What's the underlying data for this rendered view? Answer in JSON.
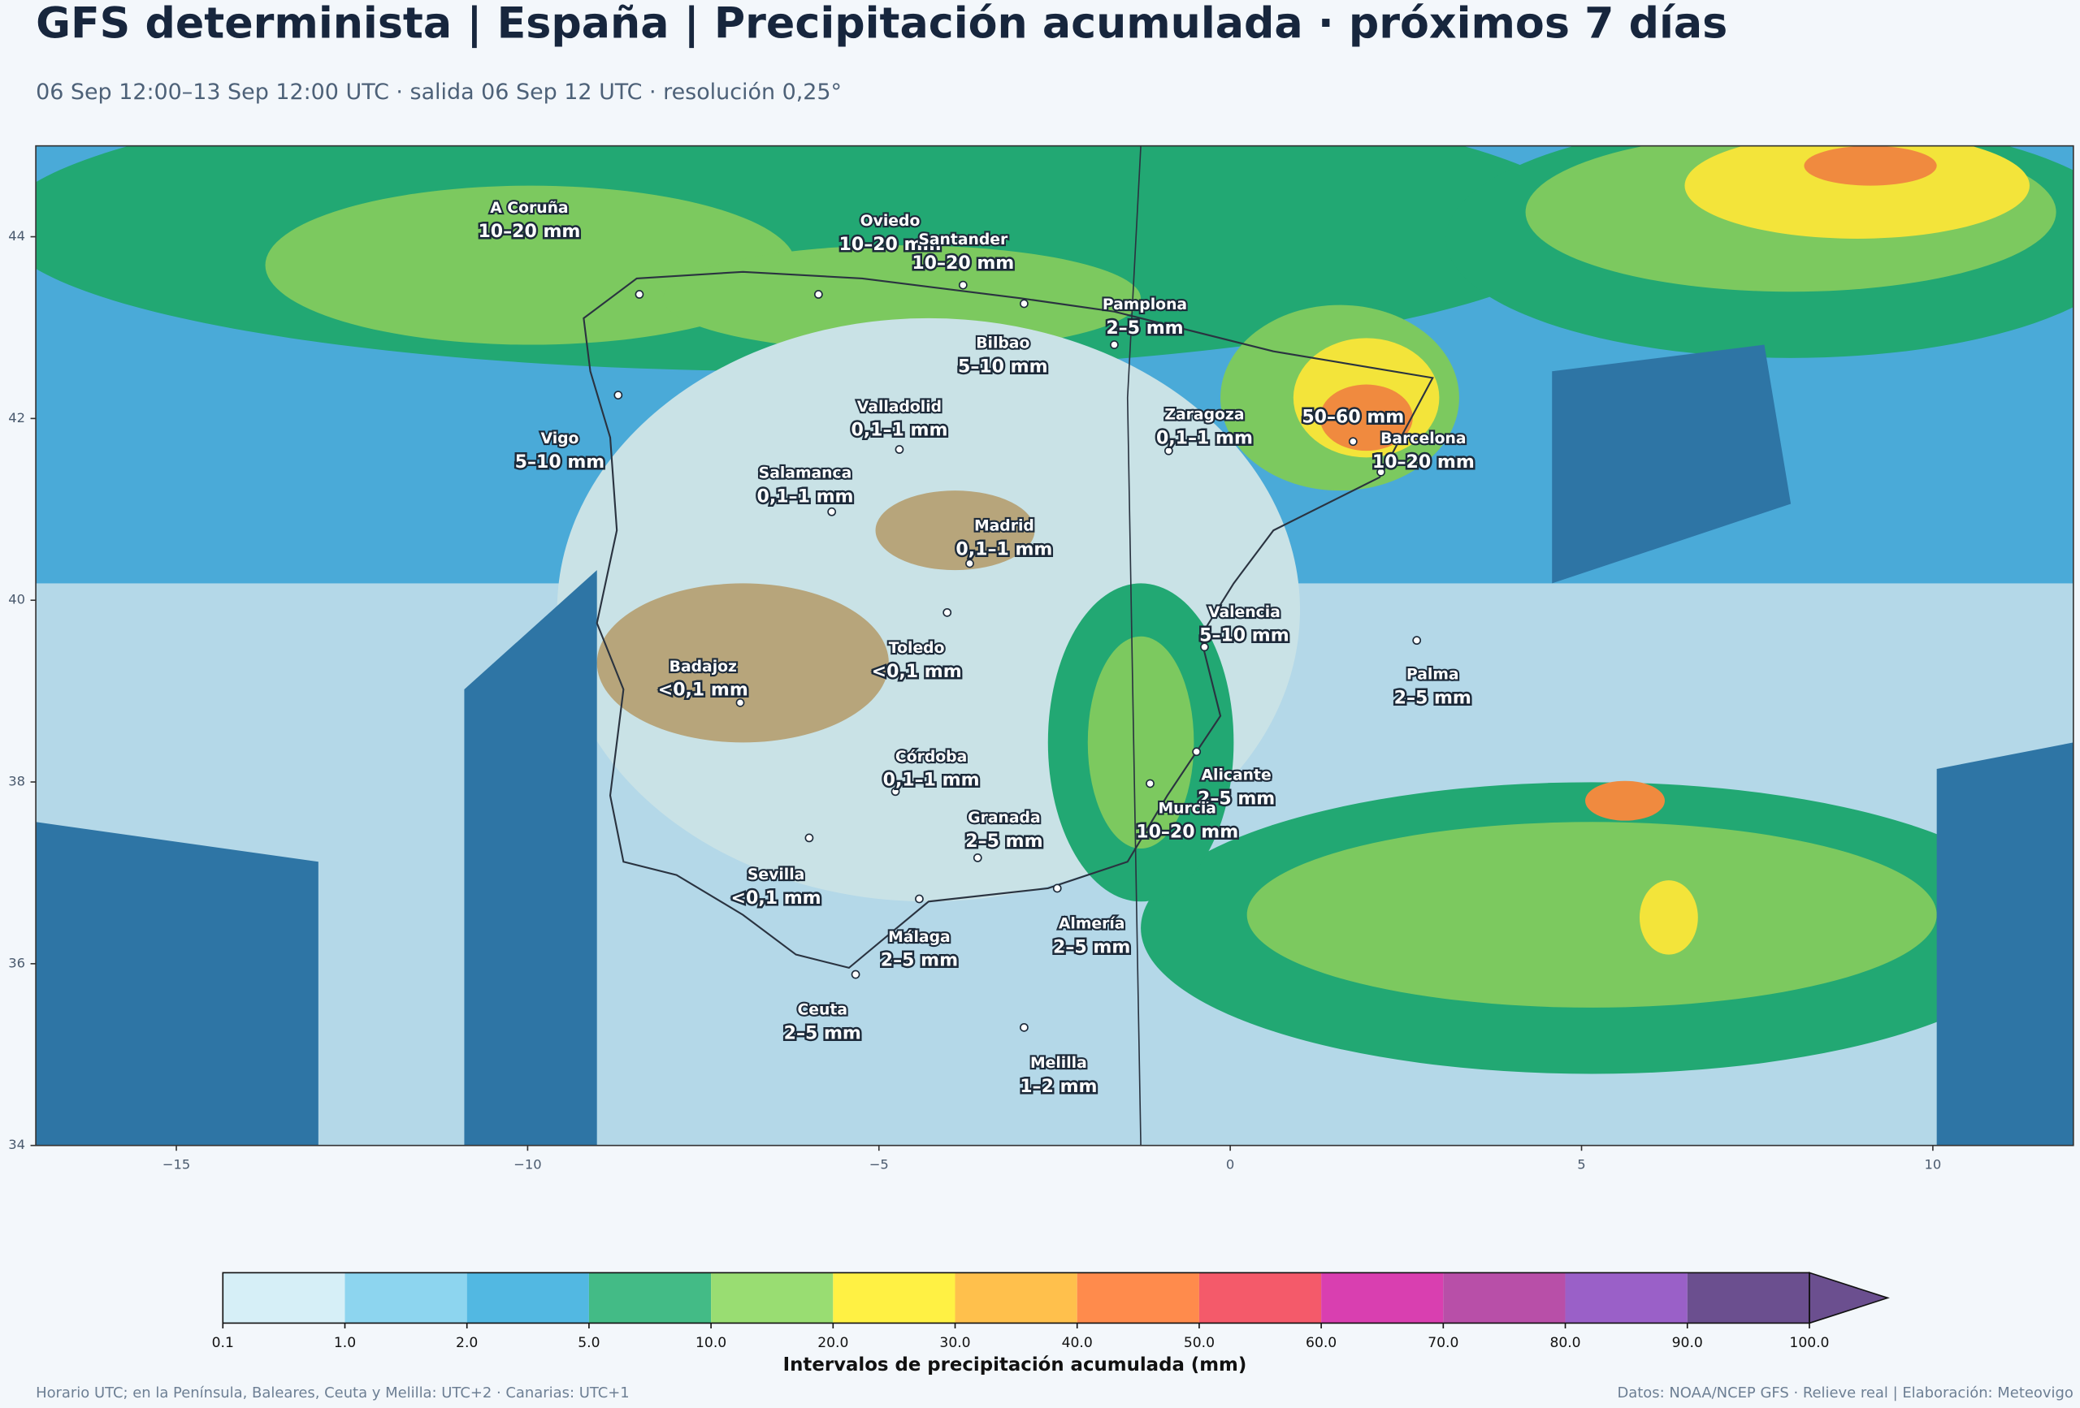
{
  "header": {
    "title": "GFS determinista | España | Precipitación acumulada · próximos 7 días",
    "subtitle": "06 Sep 12:00–13 Sep 12:00 UTC · salida 06 Sep 12 UTC · resolución 0,25°"
  },
  "map": {
    "xlim": [
      -17,
      12
    ],
    "ylim": [
      34,
      45
    ],
    "xticks": [
      {
        "value": -15,
        "label": "−15"
      },
      {
        "value": -10,
        "label": "−10"
      },
      {
        "value": -5,
        "label": "−5"
      },
      0,
      5,
      10
    ],
    "yticks": [
      34,
      36,
      38,
      40,
      42,
      44
    ],
    "cities": [
      {
        "name": "A Coruña",
        "value": "10–20 mm"
      },
      {
        "name": "Oviedo",
        "value": "10–20 mm"
      },
      {
        "name": "Santander",
        "value": "10–20 mm"
      },
      {
        "name": "Pamplona",
        "value": "2–5 mm"
      },
      {
        "name": "Bilbao",
        "value": "5–10 mm"
      },
      {
        "name": "Vigo",
        "value": "5–10 mm"
      },
      {
        "name": "Valladolid",
        "value": "0,1–1 mm"
      },
      {
        "name": "Zaragoza",
        "value": "0,1–1 mm"
      },
      {
        "value": "50–60 mm"
      },
      {
        "name": "Barcelona",
        "value": "10–20 mm"
      },
      {
        "name": "Salamanca",
        "value": "0,1–1 mm"
      },
      {
        "name": "Madrid",
        "value": "0,1–1 mm"
      },
      {
        "name": "Valencia",
        "value": "5–10 mm"
      },
      {
        "name": "Toledo",
        "value": "<0,1 mm"
      },
      {
        "name": "Badajoz",
        "value": "<0,1 mm"
      },
      {
        "name": "Palma",
        "value": "2–5 mm"
      },
      {
        "name": "Córdoba",
        "value": "0,1–1 mm"
      },
      {
        "name": "Alicante",
        "value": "2–5 mm"
      },
      {
        "name": "Murcia",
        "value": "10–20 mm"
      },
      {
        "name": "Granada",
        "value": "2–5 mm"
      },
      {
        "name": "Sevilla",
        "value": "<0,1 mm"
      },
      {
        "name": "Almería",
        "value": "2–5 mm"
      },
      {
        "name": "Málaga",
        "value": "2–5 mm"
      },
      {
        "name": "Ceuta",
        "value": "2–5 mm"
      },
      {
        "name": "Melilla",
        "value": "1–2 mm"
      }
    ]
  },
  "colorbar": {
    "label": "Intervalos de precipitación acumulada (mm)",
    "bounds": [
      {
        "value": 0.1,
        "label": "0.1"
      },
      {
        "value": 1,
        "label": "1.0"
      },
      {
        "value": 2,
        "label": "2.0"
      },
      {
        "value": 5,
        "label": "5.0"
      },
      {
        "value": 10,
        "label": "10.0"
      },
      {
        "value": 20,
        "label": "20.0"
      },
      {
        "value": 30,
        "label": "30.0"
      },
      {
        "value": 40,
        "label": "40.0"
      },
      {
        "value": 50,
        "label": "50.0"
      },
      {
        "value": 60,
        "label": "60.0"
      },
      {
        "value": 70,
        "label": "70.0"
      },
      {
        "value": 80,
        "label": "80.0"
      },
      {
        "value": 90,
        "label": "90.0"
      },
      {
        "value": 100,
        "label": "100.0"
      }
    ],
    "colors": [
      "#d6eff7",
      "#8dd5ef",
      "#52b8e2",
      "#43bb86",
      "#99dd72",
      "#fff144",
      "#ffc04c",
      "#ff8b4c",
      "#f45a6a",
      "#d93fb0",
      "#b84fa8",
      "#9a60c8",
      "#6b4f8f"
    ]
  },
  "footer": {
    "left": "Horario UTC; en la Península, Baleares, Ceuta y Melilla: UTC+2 · Canarias: UTC+1",
    "right": "Datos: NOAA/NCEP GFS · Relieve real | Elaboración: Meteovigo"
  }
}
